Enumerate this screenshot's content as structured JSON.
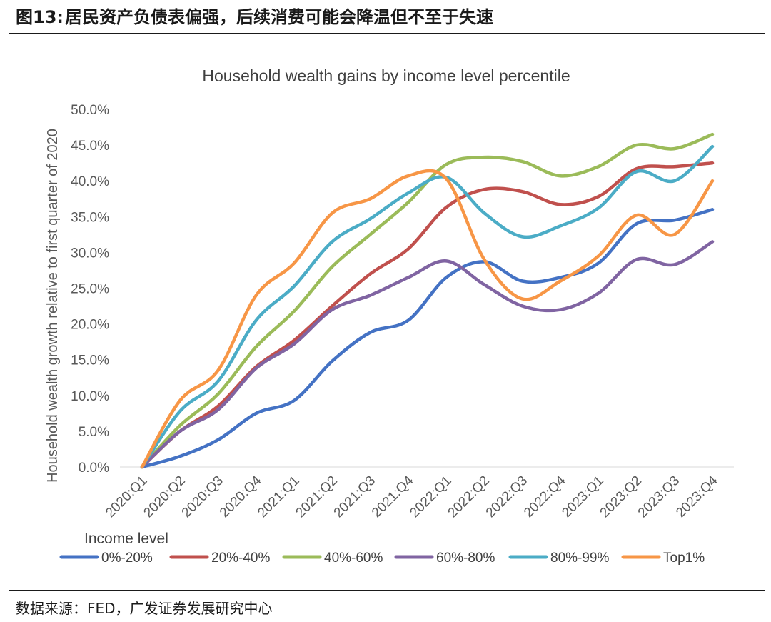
{
  "figure": {
    "label": "图13:",
    "caption": "居民资产负债表偏强，后续消费可能会降温但不至于失速",
    "source": "数据来源：FED，广发证券发展研究中心"
  },
  "chart_data": {
    "type": "line",
    "title": "Household wealth gains by income level percentile",
    "xlabel": "",
    "ylabel": "Household wealth growth relative to first quarter of 2020",
    "categories": [
      "2020:Q1",
      "2020:Q2",
      "2020:Q3",
      "2020:Q4",
      "2021:Q1",
      "2021:Q2",
      "2021:Q3",
      "2021:Q4",
      "2022:Q1",
      "2022:Q2",
      "2022:Q3",
      "2022:Q4",
      "2023:Q1",
      "2023:Q2",
      "2023:Q3",
      "2023:Q4"
    ],
    "ylim": [
      0,
      50
    ],
    "y_ticks": [
      "0.0%",
      "5.0%",
      "10.0%",
      "15.0%",
      "20.0%",
      "25.0%",
      "30.0%",
      "35.0%",
      "40.0%",
      "45.0%",
      "50.0%"
    ],
    "y_tick_values": [
      0,
      5,
      10,
      15,
      20,
      25,
      30,
      35,
      40,
      45,
      50
    ],
    "grid": false,
    "legend_title": "Income level",
    "legend_position": "bottom",
    "series": [
      {
        "name": "0%-20%",
        "color": "#4472C4",
        "values": [
          0,
          1.5,
          3.8,
          7.5,
          9.3,
          14.8,
          18.8,
          20.5,
          26.5,
          28.7,
          26.0,
          26.5,
          28.5,
          34.0,
          34.5,
          36.0
        ]
      },
      {
        "name": "20%-40%",
        "color": "#C0504D",
        "values": [
          0,
          5.0,
          8.5,
          14.0,
          17.7,
          22.5,
          27.0,
          30.5,
          36.3,
          38.8,
          38.5,
          36.7,
          37.8,
          41.7,
          42.0,
          42.5
        ]
      },
      {
        "name": "40%-60%",
        "color": "#9BBB59",
        "values": [
          0,
          5.8,
          10.2,
          16.8,
          21.8,
          28.0,
          32.5,
          37.0,
          42.3,
          43.3,
          42.7,
          40.7,
          42.0,
          45.0,
          44.5,
          46.5
        ]
      },
      {
        "name": "60%-80%",
        "color": "#8064A2",
        "values": [
          0,
          5.0,
          8.0,
          13.8,
          17.2,
          22.0,
          24.0,
          26.5,
          28.8,
          25.5,
          22.5,
          22.0,
          24.3,
          29.0,
          28.3,
          31.5
        ]
      },
      {
        "name": "80%-99%",
        "color": "#4BACC6",
        "values": [
          0,
          7.8,
          12.0,
          20.5,
          25.3,
          31.5,
          34.7,
          38.3,
          40.5,
          35.5,
          32.2,
          33.7,
          36.2,
          41.3,
          40.0,
          44.8
        ]
      },
      {
        "name": "Top1%",
        "color": "#F79646",
        "values": [
          0,
          9.3,
          13.5,
          24.0,
          28.5,
          35.5,
          37.5,
          40.7,
          40.3,
          29.0,
          23.5,
          26.0,
          29.5,
          35.2,
          32.5,
          40.0
        ]
      }
    ]
  }
}
